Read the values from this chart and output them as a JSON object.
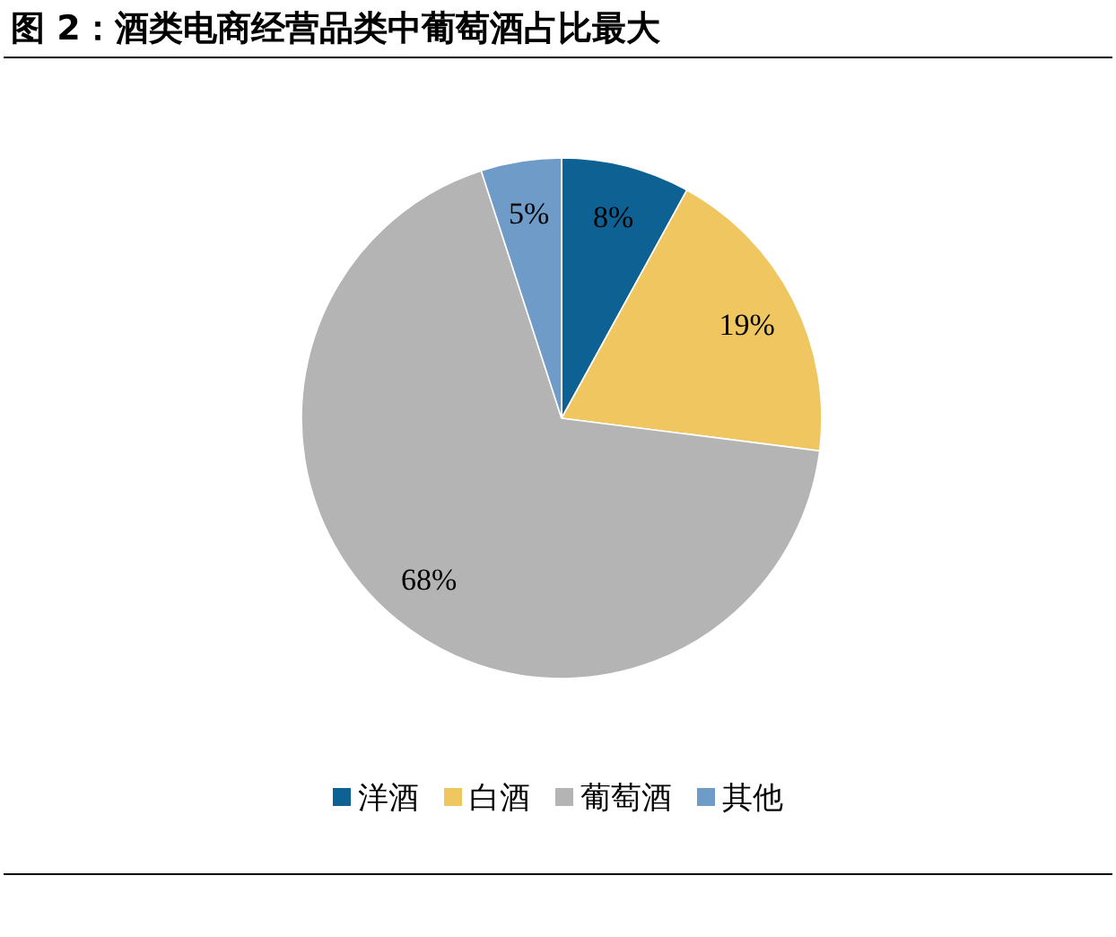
{
  "chart_data": {
    "type": "pie",
    "title": "图 2：酒类电商经营品类中葡萄酒占比最大",
    "categories": [
      "洋酒",
      "白酒",
      "葡萄酒",
      "其他"
    ],
    "values": [
      8,
      19,
      68,
      5
    ],
    "colors": [
      "#0d6193",
      "#efc660",
      "#b4b4b4",
      "#6f9bc9"
    ],
    "value_labels": [
      "8%",
      "19%",
      "68%",
      "5%"
    ],
    "legend": "bottom"
  }
}
